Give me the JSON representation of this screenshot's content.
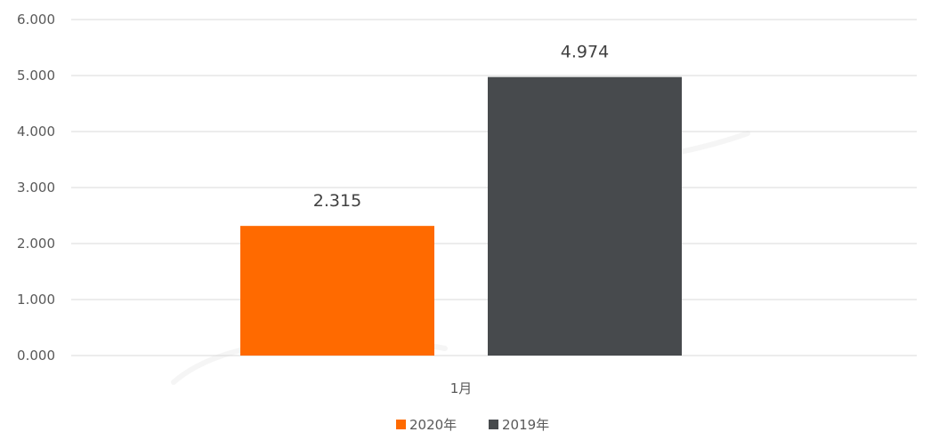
{
  "chart_data": {
    "type": "bar",
    "categories": [
      "1月"
    ],
    "series": [
      {
        "name": "2020年",
        "values": [
          2.315
        ],
        "value_labels": [
          "2.315"
        ],
        "color": "#ff6a00"
      },
      {
        "name": "2019年",
        "values": [
          4.974
        ],
        "value_labels": [
          "4.974"
        ],
        "color": "#474a4d"
      }
    ],
    "ylim": [
      0,
      6
    ],
    "yticks": [
      {
        "value": 0,
        "label": "0.000"
      },
      {
        "value": 1,
        "label": "1.000"
      },
      {
        "value": 2,
        "label": "2.000"
      },
      {
        "value": 3,
        "label": "3.000"
      },
      {
        "value": 4,
        "label": "4.000"
      },
      {
        "value": 5,
        "label": "5.000"
      },
      {
        "value": 6,
        "label": "6.000"
      }
    ],
    "grid": true,
    "gridline_color": "#d9d9d9",
    "legend_position": "bottom",
    "title": "",
    "xlabel": "",
    "ylabel": ""
  }
}
